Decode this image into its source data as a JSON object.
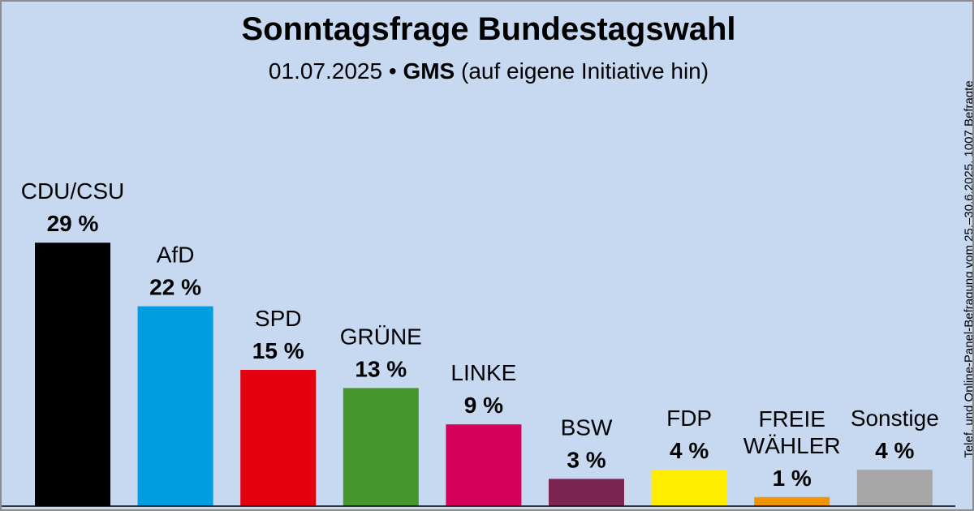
{
  "title": "Sonntagsfrage Bundestagswahl",
  "subtitle": {
    "date": "01.07.2025",
    "separator": "•",
    "institute": "GMS",
    "note": "(auf eigene Initiative hin)"
  },
  "side_note": "Telef. und Online-Panel-Befragung vom 25.–30.6.2025, 1007 Befragte",
  "chart_data": {
    "type": "bar",
    "title": "Sonntagsfrage Bundestagswahl",
    "xlabel": "",
    "ylabel": "",
    "unit": "%",
    "ylim": [
      0,
      30
    ],
    "grid": false,
    "legend": "none",
    "categories": [
      "CDU/CSU",
      "AfD",
      "SPD",
      "GRÜNE",
      "LINKE",
      "BSW",
      "FDP",
      "FREIE WÄHLER",
      "Sonstige"
    ],
    "category_lines": [
      [
        "CDU/CSU"
      ],
      [
        "AfD"
      ],
      [
        "SPD"
      ],
      [
        "GRÜNE"
      ],
      [
        "LINKE"
      ],
      [
        "BSW"
      ],
      [
        "FDP"
      ],
      [
        "FREIE",
        "WÄHLER"
      ],
      [
        "Sonstige"
      ]
    ],
    "values": [
      29,
      22,
      15,
      13,
      9,
      3,
      4,
      1,
      4
    ],
    "value_labels": [
      "29 %",
      "22 %",
      "15 %",
      "13 %",
      "9 %",
      "3 %",
      "4 %",
      "1 %",
      "4 %"
    ],
    "colors": [
      "#000000",
      "#009ee0",
      "#e3000f",
      "#46962b",
      "#d4005c",
      "#7b2450",
      "#ffed00",
      "#f29400",
      "#a6a6a6"
    ]
  }
}
